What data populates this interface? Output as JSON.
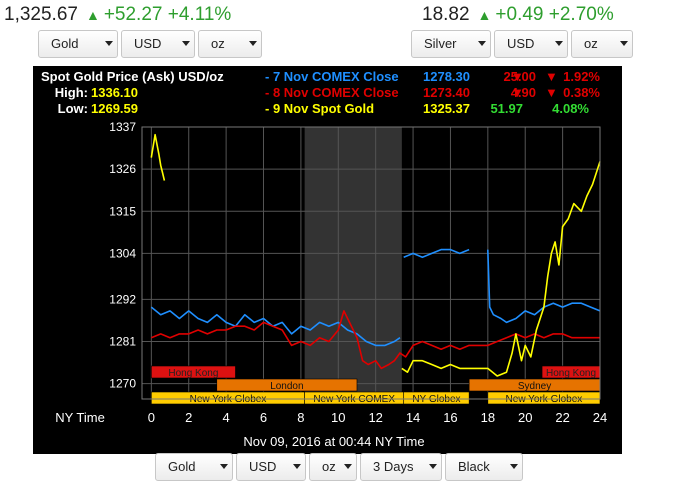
{
  "gold_quote": {
    "price": "1,325.67",
    "change": "+52.27",
    "pct": "+4.11%",
    "metal": "Gold",
    "currency": "USD",
    "unit": "oz"
  },
  "silver_quote": {
    "price": "18.82",
    "change": "+0.49",
    "pct": "+2.70%",
    "metal": "Silver",
    "currency": "USD",
    "unit": "oz"
  },
  "bottom_controls": {
    "metal": "Gold",
    "currency": "USD",
    "unit": "oz",
    "period": "3 Days",
    "theme": "Black"
  },
  "colors": {
    "background": "#000000",
    "blue": "#1f8fff",
    "red": "#e00000",
    "yellow": "#ffff00",
    "green": "#33dd33",
    "up_green": "#2e9e2e"
  },
  "chart_data": {
    "type": "line",
    "title": "Spot Gold Price (Ask) USD/oz",
    "stats": [
      {
        "label": "High:",
        "value": "1336.10"
      },
      {
        "label": "Low:",
        "value": "1269.59"
      }
    ],
    "legend": [
      {
        "label": "- 7 Nov COMEX Close",
        "price": "1278.30",
        "change": "25.00",
        "pct": "1.92%",
        "direction": "down",
        "color": "#1f8fff"
      },
      {
        "label": "- 8 Nov COMEX Close",
        "price": "1273.40",
        "change": "4.90",
        "pct": "0.38%",
        "direction": "down",
        "color": "#e00000"
      },
      {
        "label": "- 9 Nov Spot Gold",
        "price": "1325.37",
        "change": "51.97",
        "pct": "4.08%",
        "direction": "up",
        "color": "#ffff00"
      }
    ],
    "xlabel": "NY Time",
    "x_ticks": [
      0,
      2,
      4,
      6,
      8,
      10,
      12,
      14,
      16,
      18,
      20,
      22,
      24
    ],
    "xlim": [
      -0.5,
      24
    ],
    "y_ticks": [
      1270,
      1281,
      1292,
      1304,
      1315,
      1326,
      1337
    ],
    "ylim": [
      1266,
      1337
    ],
    "shaded_range": [
      8.2,
      13.4
    ],
    "sessions": [
      {
        "name": "Hong Kong",
        "start": 0,
        "end": 4.5,
        "row": 0,
        "color": "#dd1111"
      },
      {
        "name": "Hong Kong",
        "start": 20.9,
        "end": 24,
        "row": 0,
        "color": "#dd1111"
      },
      {
        "name": "London",
        "start": 3.5,
        "end": 11.0,
        "row": 1,
        "color": "#e67300"
      },
      {
        "name": "Sydney",
        "start": 17,
        "end": 24,
        "row": 1,
        "color": "#e67300"
      },
      {
        "name": "New York Globex",
        "start": 0,
        "end": 8.2,
        "row": 2,
        "color": "#ffcc00"
      },
      {
        "name": "New York COMEX",
        "start": 8.2,
        "end": 13.5,
        "row": 2,
        "color": "#ffcc00"
      },
      {
        "name": "NY Globex",
        "start": 13.5,
        "end": 17.0,
        "row": 2,
        "color": "#ffcc00"
      },
      {
        "name": "New York Globex",
        "start": 18.0,
        "end": 24,
        "row": 2,
        "color": "#ffcc00"
      }
    ],
    "timestamp": "Nov 09, 2016 at 00:44 NY Time",
    "series": [
      {
        "name": "7 Nov COMEX Close",
        "color": "#1f8fff",
        "segments": [
          {
            "x": [
              0,
              0.5,
              1,
              1.5,
              2,
              2.5,
              3,
              3.5,
              4,
              4.5,
              5,
              5.5,
              6,
              6.5,
              7,
              7.5,
              8,
              8.5,
              9,
              9.5,
              10,
              10.5,
              11,
              11.5,
              12,
              12.5,
              13,
              13.3
            ],
            "y": [
              1290,
              1288,
              1289,
              1287,
              1289,
              1287,
              1286,
              1288,
              1286,
              1285,
              1288,
              1286,
              1287,
              1285,
              1286,
              1283,
              1285,
              1284,
              1286,
              1285,
              1286,
              1284,
              1283,
              1281,
              1280,
              1280,
              1281,
              1282
            ]
          },
          {
            "x": [
              13.5,
              14,
              14.5,
              15,
              15.5,
              16,
              16.5,
              17
            ],
            "y": [
              1303,
              1304,
              1303,
              1304,
              1305,
              1305,
              1304,
              1305
            ]
          },
          {
            "x": [
              18,
              18.1,
              18.3,
              18.7,
              19,
              19.5,
              20,
              20.5,
              21,
              21.5,
              22,
              22.5,
              23,
              23.5,
              24
            ],
            "y": [
              1305,
              1290,
              1288,
              1287,
              1286,
              1287,
              1289,
              1288,
              1290,
              1291,
              1290,
              1291,
              1291,
              1290,
              1289
            ]
          }
        ]
      },
      {
        "name": "8 Nov COMEX Close",
        "color": "#e00000",
        "segments": [
          {
            "x": [
              0,
              0.5,
              1,
              1.5,
              2,
              2.5,
              3,
              3.5,
              4,
              4.5,
              5,
              5.5,
              6,
              6.5,
              7,
              7.5,
              8,
              8.5,
              9,
              9.5,
              10,
              10.3,
              10.6,
              11,
              11.3,
              11.6,
              12,
              12.3,
              12.7,
              13,
              13.3,
              13.6,
              14,
              14.5,
              15,
              15.5,
              16,
              16.5,
              17,
              17.5,
              18,
              18.5,
              19,
              19.5,
              20,
              20.5,
              21,
              21.5,
              22,
              22.5,
              23,
              23.5,
              24
            ],
            "y": [
              1282,
              1283,
              1282,
              1283,
              1283,
              1284,
              1283,
              1284,
              1284,
              1285,
              1285,
              1284,
              1286,
              1285,
              1284,
              1280,
              1281,
              1280,
              1282,
              1281,
              1284,
              1289,
              1286,
              1282,
              1276,
              1275,
              1276,
              1274,
              1275,
              1276,
              1278,
              1277,
              1280,
              1281,
              1280,
              1279,
              1280,
              1279,
              1280,
              1280,
              1280,
              1281,
              1282,
              1283,
              1282,
              1283,
              1282,
              1283,
              1283,
              1282,
              1282,
              1282,
              1282
            ]
          }
        ]
      },
      {
        "name": "9 Nov Spot Gold",
        "color": "#ffff00",
        "segments": [
          {
            "x": [
              0,
              0.2,
              0.4,
              0.5,
              0.6,
              0.7
            ],
            "y": [
              1329,
              1335,
              1330,
              1327,
              1325,
              1323
            ]
          },
          {
            "x": [
              13.4,
              13.7,
              14,
              14.5,
              15,
              15.5,
              16,
              16.5,
              17,
              17.5,
              18,
              18.5,
              19,
              19.3,
              19.5,
              19.8,
              20,
              20.3,
              20.6,
              21,
              21.2,
              21.4,
              21.6,
              21.8,
              22,
              22.3,
              22.6,
              23,
              23.3,
              23.6,
              24
            ],
            "y": [
              1274,
              1273,
              1276,
              1276,
              1275,
              1274,
              1275,
              1274,
              1274,
              1274,
              1274,
              1272,
              1273,
              1278,
              1283,
              1276,
              1280,
              1277,
              1284,
              1290,
              1298,
              1304,
              1307,
              1301,
              1311,
              1313,
              1317,
              1315,
              1319,
              1322,
              1328
            ]
          }
        ]
      }
    ]
  }
}
